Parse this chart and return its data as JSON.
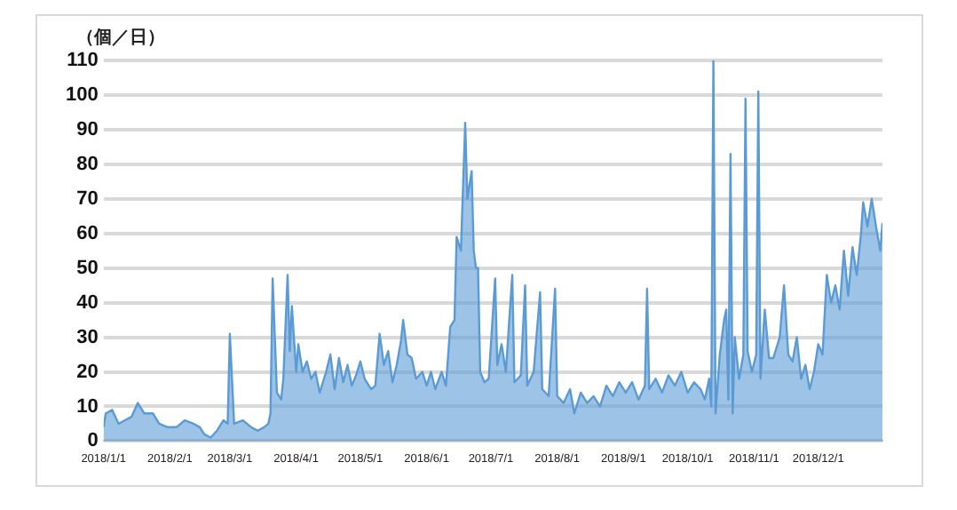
{
  "chart_data": {
    "type": "area",
    "ylabel": "（個／日）",
    "x": [
      "2018-01-01",
      "2018-01-02",
      "2018-01-05",
      "2018-01-08",
      "2018-01-11",
      "2018-01-14",
      "2018-01-17",
      "2018-01-20",
      "2018-01-24",
      "2018-01-27",
      "2018-01-31",
      "2018-02-04",
      "2018-02-08",
      "2018-02-12",
      "2018-02-15",
      "2018-02-17",
      "2018-02-20",
      "2018-02-23",
      "2018-02-26",
      "2018-02-28",
      "2018-03-01",
      "2018-03-03",
      "2018-03-07",
      "2018-03-11",
      "2018-03-14",
      "2018-03-17",
      "2018-03-19",
      "2018-03-20",
      "2018-03-21",
      "2018-03-23",
      "2018-03-25",
      "2018-03-26",
      "2018-03-28",
      "2018-03-29",
      "2018-03-30",
      "2018-04-01",
      "2018-04-02",
      "2018-04-04",
      "2018-04-06",
      "2018-04-08",
      "2018-04-10",
      "2018-04-12",
      "2018-04-15",
      "2018-04-17",
      "2018-04-19",
      "2018-04-21",
      "2018-04-23",
      "2018-04-25",
      "2018-04-27",
      "2018-04-29",
      "2018-05-01",
      "2018-05-03",
      "2018-05-06",
      "2018-05-08",
      "2018-05-10",
      "2018-05-12",
      "2018-05-14",
      "2018-05-16",
      "2018-05-18",
      "2018-05-20",
      "2018-05-21",
      "2018-05-23",
      "2018-05-25",
      "2018-05-27",
      "2018-05-30",
      "2018-06-01",
      "2018-06-03",
      "2018-06-05",
      "2018-06-08",
      "2018-06-10",
      "2018-06-12",
      "2018-06-14",
      "2018-06-15",
      "2018-06-17",
      "2018-06-19",
      "2018-06-20",
      "2018-06-22",
      "2018-06-23",
      "2018-06-24",
      "2018-06-25",
      "2018-06-26",
      "2018-06-28",
      "2018-06-30",
      "2018-07-03",
      "2018-07-04",
      "2018-07-06",
      "2018-07-08",
      "2018-07-11",
      "2018-07-12",
      "2018-07-15",
      "2018-07-17",
      "2018-07-18",
      "2018-07-21",
      "2018-07-24",
      "2018-07-25",
      "2018-07-28",
      "2018-07-31",
      "2018-08-01",
      "2018-08-04",
      "2018-08-07",
      "2018-08-09",
      "2018-08-12",
      "2018-08-15",
      "2018-08-18",
      "2018-08-21",
      "2018-08-24",
      "2018-08-27",
      "2018-08-30",
      "2018-09-02",
      "2018-09-05",
      "2018-09-08",
      "2018-09-11",
      "2018-09-12",
      "2018-09-13",
      "2018-09-16",
      "2018-09-19",
      "2018-09-22",
      "2018-09-25",
      "2018-09-28",
      "2018-10-01",
      "2018-10-04",
      "2018-10-07",
      "2018-10-09",
      "2018-10-11",
      "2018-10-12",
      "2018-10-13",
      "2018-10-14",
      "2018-10-16",
      "2018-10-18",
      "2018-10-19",
      "2018-10-20",
      "2018-10-21",
      "2018-10-22",
      "2018-10-23",
      "2018-10-25",
      "2018-10-27",
      "2018-10-28",
      "2018-10-29",
      "2018-10-31",
      "2018-11-02",
      "2018-11-03",
      "2018-11-04",
      "2018-11-06",
      "2018-11-08",
      "2018-11-10",
      "2018-11-13",
      "2018-11-15",
      "2018-11-17",
      "2018-11-19",
      "2018-11-21",
      "2018-11-23",
      "2018-11-25",
      "2018-11-27",
      "2018-11-29",
      "2018-12-01",
      "2018-12-03",
      "2018-12-05",
      "2018-12-07",
      "2018-12-09",
      "2018-12-11",
      "2018-12-13",
      "2018-12-15",
      "2018-12-17",
      "2018-12-19",
      "2018-12-21",
      "2018-12-22",
      "2018-12-24",
      "2018-12-26",
      "2018-12-28",
      "2018-12-30",
      "2018-12-31"
    ],
    "series": [
      {
        "color": "#5b9bd5",
        "values": [
          4,
          8,
          9,
          5,
          6,
          7,
          11,
          8,
          8,
          5,
          4,
          4,
          6,
          5,
          4,
          2,
          1,
          3,
          6,
          5,
          31,
          5,
          6,
          4,
          3,
          4,
          5,
          8,
          47,
          14,
          12,
          18,
          48,
          26,
          39,
          20,
          28,
          20,
          23,
          18,
          20,
          14,
          20,
          25,
          15,
          24,
          17,
          22,
          16,
          19,
          23,
          18,
          15,
          16,
          31,
          22,
          26,
          17,
          22,
          29,
          35,
          25,
          24,
          18,
          20,
          16,
          20,
          15,
          20,
          16,
          33,
          35,
          59,
          55,
          92,
          70,
          78,
          55,
          50,
          50,
          20,
          17,
          18,
          47,
          22,
          28,
          20,
          48,
          17,
          19,
          45,
          16,
          20,
          43,
          15,
          13,
          44,
          13,
          11,
          15,
          8,
          14,
          11,
          13,
          10,
          16,
          13,
          17,
          14,
          17,
          12,
          16,
          44,
          15,
          18,
          14,
          19,
          16,
          20,
          14,
          17,
          15,
          12,
          18,
          10,
          110,
          8,
          25,
          35,
          38,
          12,
          83,
          8,
          30,
          18,
          25,
          99,
          26,
          20,
          25,
          101,
          18,
          38,
          24,
          24,
          30,
          45,
          25,
          23,
          30,
          18,
          22,
          15,
          20,
          28,
          25,
          48,
          40,
          45,
          38,
          55,
          42,
          56,
          48,
          60,
          69,
          62,
          70,
          62,
          55,
          63
        ]
      }
    ],
    "xlim": [
      "2018-01-01",
      "2018-12-31"
    ],
    "xticks": [
      {
        "value": "2018-01-01",
        "label": "2018/1/1"
      },
      {
        "value": "2018-02-01",
        "label": "2018/2/1"
      },
      {
        "value": "2018-03-01",
        "label": "2018/3/1"
      },
      {
        "value": "2018-04-01",
        "label": "2018/4/1"
      },
      {
        "value": "2018-05-01",
        "label": "2018/5/1"
      },
      {
        "value": "2018-06-01",
        "label": "2018/6/1"
      },
      {
        "value": "2018-07-01",
        "label": "2018/7/1"
      },
      {
        "value": "2018-08-01",
        "label": "2018/8/1"
      },
      {
        "value": "2018-09-01",
        "label": "2018/9/1"
      },
      {
        "value": "2018-10-01",
        "label": "2018/10/1"
      },
      {
        "value": "2018-11-01",
        "label": "2018/11/1"
      },
      {
        "value": "2018-12-01",
        "label": "2018/12/1"
      }
    ],
    "ylim": [
      0,
      110
    ],
    "yticks": [
      0,
      10,
      20,
      30,
      40,
      50,
      60,
      70,
      80,
      90,
      100,
      110
    ],
    "grid": "y",
    "legend": false,
    "marker": "none",
    "line_style": "solid"
  }
}
